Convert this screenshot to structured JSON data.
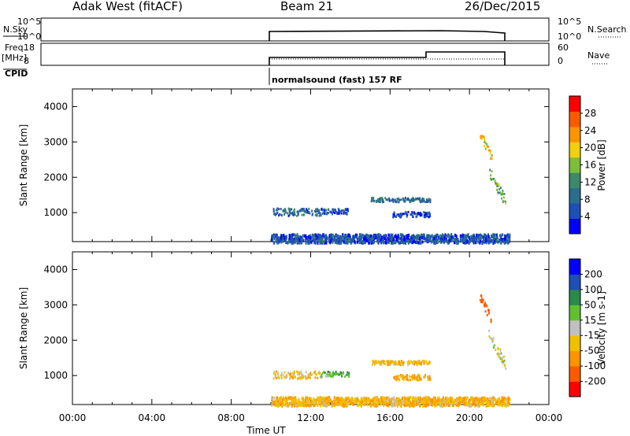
{
  "header": {
    "station": "Adak West (fitACF)",
    "beam": "Beam 21",
    "date": "26/Dec/2015"
  },
  "top_panels": {
    "nsky_label": "N.Sky",
    "nsearch_label": "N.Search",
    "noise_ticks": [
      "10^5",
      "10^0"
    ],
    "freq_label": "Freq.",
    "freq_unit": "[MHz]",
    "freq_ticks": [
      "18",
      "8"
    ],
    "nave_label": "Nave",
    "nave_ticks": [
      "60",
      "0"
    ],
    "cpid_label": "CPID",
    "cpid_text": "normalsound (fast) 157 RF"
  },
  "colors": {
    "power_scale": [
      "#0000ff",
      "#1f4fb4",
      "#2a6e8c",
      "#3c8a6a",
      "#7ebd3a",
      "#f0d010",
      "#ff9400",
      "#ff5a00",
      "#ff0000"
    ],
    "velocity_scale": [
      "#ff0000",
      "#ff5a00",
      "#ff9400",
      "#f0c000",
      "#c0c0c0",
      "#60c030",
      "#2a8a4a",
      "#1f4fb4",
      "#0000ff"
    ]
  },
  "chart_data": [
    {
      "type": "heatmap",
      "name": "power",
      "ylabel": "Slant Range [km]",
      "yticks": [
        "4000",
        "3000",
        "2000",
        "1000"
      ],
      "ylim": [
        180,
        4500
      ],
      "xlim": [
        0,
        24
      ],
      "colorbar_label": "Power [dB]",
      "colorbar_ticks": [
        "28",
        "24",
        "20",
        "16",
        "12",
        "8",
        "4"
      ],
      "colorbar_range": [
        0,
        32
      ],
      "echo_regions": [
        {
          "t": [
            10.1,
            12.5
          ],
          "range": [
            940,
            1150
          ],
          "value": 8
        },
        {
          "t": [
            12.5,
            13.9
          ],
          "range": [
            990,
            1140
          ],
          "value": 6
        },
        {
          "t": [
            15.0,
            18.0
          ],
          "range": [
            1330,
            1450
          ],
          "value": 9
        },
        {
          "t": [
            16.1,
            18.0
          ],
          "range": [
            900,
            1050
          ],
          "value": 5
        },
        {
          "t": [
            20.5,
            21.1
          ],
          "range": [
            2550,
            3300
          ],
          "value": 20
        },
        {
          "t": [
            20.9,
            21.8
          ],
          "range": [
            1350,
            2250
          ],
          "value": 14
        },
        {
          "t": [
            10.0,
            22.0
          ],
          "range": [
            180,
            420
          ],
          "value": 6
        }
      ]
    },
    {
      "type": "heatmap",
      "name": "velocity",
      "ylabel": "Slant Range [km]",
      "yticks": [
        "4000",
        "3000",
        "2000",
        "1000"
      ],
      "ylim": [
        180,
        4500
      ],
      "xlim": [
        0,
        24
      ],
      "xticks": [
        "00:00",
        "04:00",
        "08:00",
        "12:00",
        "16:00",
        "20:00",
        "00:00"
      ],
      "xlabel": "Time UT",
      "colorbar_label": "Velocity [m s-1]",
      "colorbar_ticks": [
        "200",
        "100",
        "50",
        "15",
        "-15",
        "-50",
        "-100",
        "-200"
      ],
      "echo_regions": [
        {
          "t": [
            10.1,
            12.5
          ],
          "range": [
            940,
            1150
          ],
          "value": -30
        },
        {
          "t": [
            12.5,
            13.9
          ],
          "range": [
            990,
            1140
          ],
          "value": 40
        },
        {
          "t": [
            15.0,
            18.0
          ],
          "range": [
            1330,
            1450
          ],
          "value": -40
        },
        {
          "t": [
            16.1,
            18.0
          ],
          "range": [
            900,
            1050
          ],
          "value": -60
        },
        {
          "t": [
            20.5,
            21.1
          ],
          "range": [
            2550,
            3300
          ],
          "value": -150
        },
        {
          "t": [
            20.9,
            21.8
          ],
          "range": [
            1350,
            2250
          ],
          "value": 0
        },
        {
          "t": [
            10.0,
            22.0
          ],
          "range": [
            180,
            420
          ],
          "value": -40
        }
      ]
    }
  ]
}
